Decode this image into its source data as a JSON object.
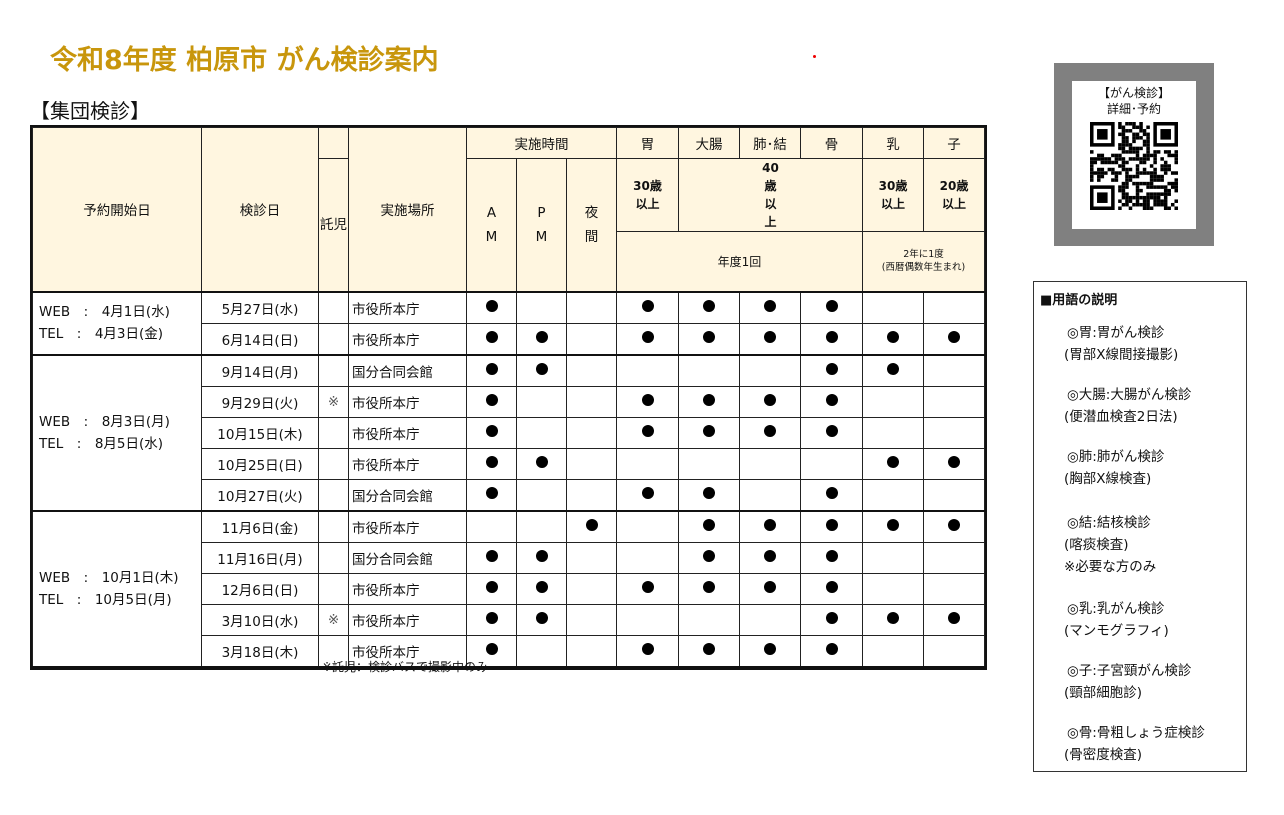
{
  "title": "令和8年度 柏原市 がん検診案内",
  "section": "【集団検診】",
  "header": {
    "reserve": "予約開始日",
    "date": "検診日",
    "childcare": "託児",
    "place": "実施場所",
    "time": "実施時間",
    "am": "A M",
    "pm": "P M",
    "night": "夜 間",
    "stomach": "胃",
    "colon": "大腸",
    "lung": "肺･結",
    "bone": "骨",
    "breast": "乳",
    "cervix": "子",
    "age_stomach": "30歳 以上",
    "age_40": "40歳 以上",
    "age_breast": "30歳 以上",
    "age_cervix": "20歳 以上",
    "freq_yearly": "年度1回",
    "freq_biennial": "2年に1度",
    "freq_biennial_note": "(西暦偶数年生まれ)"
  },
  "groups": [
    {
      "web": "WEB　:　4月1日(水)",
      "tel": "TEL　:　4月3日(金)",
      "rows": 2
    },
    {
      "web": "WEB　:　8月3日(月)",
      "tel": "TEL　:　8月5日(水)",
      "rows": 5
    },
    {
      "web": "WEB　:　10月1日(木)",
      "tel": "TEL　:　10月5日(月)",
      "rows": 5
    }
  ],
  "rows": [
    {
      "date": "5月27日(水)",
      "child": "",
      "place": "市役所本庁",
      "marks": [
        1,
        0,
        0,
        1,
        1,
        1,
        1,
        0,
        0
      ]
    },
    {
      "date": "6月14日(日)",
      "child": "",
      "place": "市役所本庁",
      "marks": [
        1,
        1,
        0,
        1,
        1,
        1,
        1,
        1,
        1
      ]
    },
    {
      "date": "9月14日(月)",
      "child": "",
      "place": "国分合同会館",
      "marks": [
        1,
        1,
        0,
        0,
        0,
        0,
        1,
        1,
        0
      ]
    },
    {
      "date": "9月29日(火)",
      "child": "※",
      "place": "市役所本庁",
      "marks": [
        1,
        0,
        0,
        1,
        1,
        1,
        1,
        0,
        0
      ]
    },
    {
      "date": "10月15日(木)",
      "child": "",
      "place": "市役所本庁",
      "marks": [
        1,
        0,
        0,
        1,
        1,
        1,
        1,
        0,
        0
      ]
    },
    {
      "date": "10月25日(日)",
      "child": "",
      "place": "市役所本庁",
      "marks": [
        1,
        1,
        0,
        0,
        0,
        0,
        0,
        1,
        1
      ]
    },
    {
      "date": "10月27日(火)",
      "child": "",
      "place": "国分合同会館",
      "marks": [
        1,
        0,
        0,
        1,
        1,
        0,
        1,
        0,
        0
      ]
    },
    {
      "date": "11月6日(金)",
      "child": "",
      "place": "市役所本庁",
      "marks": [
        0,
        0,
        1,
        0,
        1,
        1,
        1,
        1,
        1
      ]
    },
    {
      "date": "11月16日(月)",
      "child": "",
      "place": "国分合同会館",
      "marks": [
        1,
        1,
        0,
        0,
        1,
        1,
        1,
        0,
        0
      ]
    },
    {
      "date": "12月6日(日)",
      "child": "",
      "place": "市役所本庁",
      "marks": [
        1,
        1,
        0,
        1,
        1,
        1,
        1,
        0,
        0
      ]
    },
    {
      "date": "3月10日(水)",
      "child": "※",
      "place": "市役所本庁",
      "marks": [
        1,
        1,
        0,
        0,
        0,
        0,
        1,
        1,
        1
      ]
    },
    {
      "date": "3月18日(木)",
      "child": "",
      "place": "市役所本庁",
      "marks": [
        1,
        0,
        0,
        1,
        1,
        1,
        1,
        0,
        0
      ]
    }
  ],
  "note": "※託児：検診バスで撮影中のみ",
  "qr": {
    "line1": "【がん検診】",
    "line2": "詳細･予約"
  },
  "legend": {
    "title": "■用語の説明",
    "items": [
      "◎胃:胃がん検診",
      "(胃部X線間接撮影)",
      "◎大腸:大腸がん検診",
      "(便潜血検査2日法)",
      "◎肺:肺がん検診",
      "(胸部X線検査)",
      "◎結:結核検診",
      "(喀痰検査)",
      "※必要な方のみ",
      "◎乳:乳がん検診",
      "(マンモグラフィ)",
      "◎子:子宮頸がん検診",
      "(頸部細胞診)",
      "◎骨:骨粗しょう症検診",
      "(骨密度検査)"
    ]
  }
}
